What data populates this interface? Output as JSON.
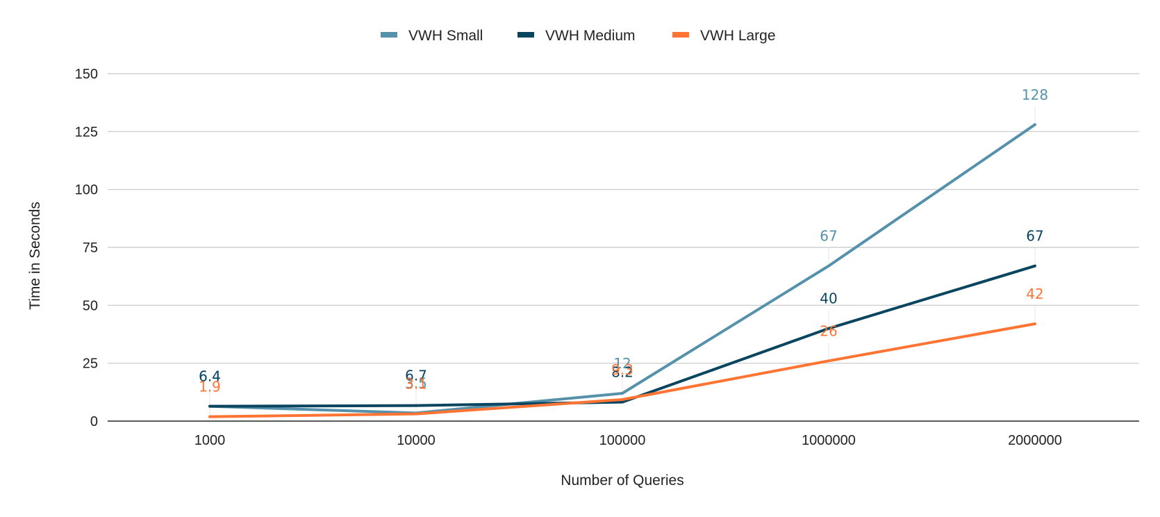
{
  "chart_data": {
    "type": "line",
    "categories": [
      "1000",
      "10000",
      "100000",
      "1000000",
      "2000000"
    ],
    "series": [
      {
        "name": "VWH Small",
        "color": "#5591aa",
        "values": [
          6.4,
          3.5,
          12,
          67,
          128
        ],
        "labels": [
          "6.4",
          "3.5",
          "12",
          "67",
          "128"
        ]
      },
      {
        "name": "VWH Medium",
        "color": "#0a4560",
        "values": [
          6.4,
          6.7,
          8.2,
          40,
          67
        ],
        "labels": [
          "6.4",
          "6.7",
          "8.2",
          "40",
          "67"
        ]
      },
      {
        "name": "VWH Large",
        "color": "#ff7433",
        "values": [
          1.9,
          3.1,
          9.3,
          26,
          42
        ],
        "labels": [
          "1.9",
          "3.1",
          "9.3",
          "26",
          "42"
        ]
      }
    ],
    "xlabel": "Number of Queries",
    "ylabel": "Time in Seconds",
    "ylim": [
      0,
      150
    ],
    "yticks": [
      "0",
      "25",
      "50",
      "75",
      "100",
      "125",
      "150"
    ],
    "grid": true,
    "legend": "top"
  }
}
